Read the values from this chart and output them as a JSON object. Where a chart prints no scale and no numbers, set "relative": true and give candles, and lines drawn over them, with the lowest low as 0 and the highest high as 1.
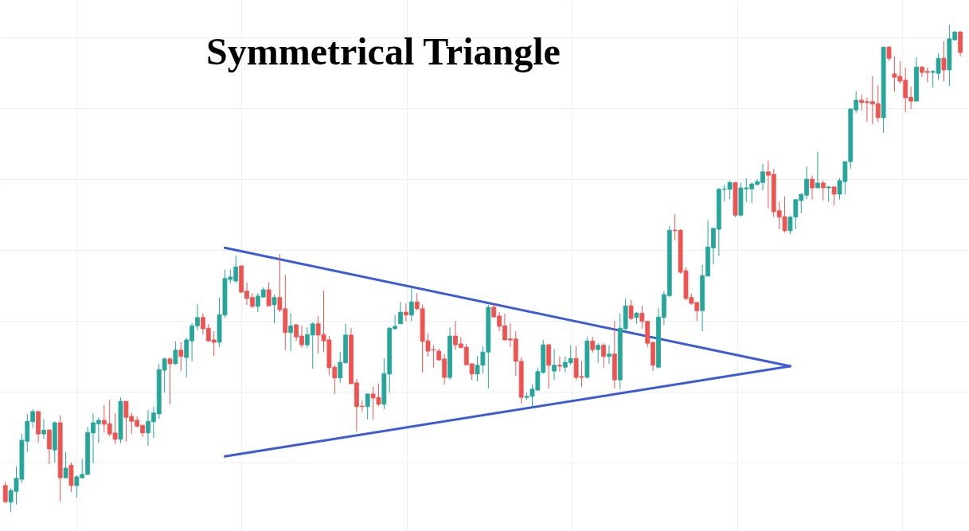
{
  "chart_data": {
    "type": "candlestick",
    "title": "Symmetrical Triangle",
    "relative": true,
    "grid": true,
    "categories": [
      null,
      null,
      null,
      null,
      null,
      null,
      null,
      null,
      null,
      null,
      null,
      null,
      null,
      null,
      null,
      null,
      null,
      null,
      null,
      null,
      null,
      null,
      null,
      null,
      null,
      null,
      null,
      null,
      null,
      null,
      null,
      null,
      null,
      null,
      null,
      null,
      null,
      null,
      null,
      null,
      null,
      null,
      null,
      null,
      null,
      null,
      null,
      null,
      null,
      null,
      null,
      null,
      null,
      null,
      null,
      null,
      null,
      null,
      null,
      null,
      null,
      null,
      null,
      null,
      null,
      null,
      null,
      null,
      null,
      null,
      null,
      null,
      null,
      null,
      null,
      null,
      null,
      null,
      null,
      null,
      null,
      null,
      null,
      null,
      null,
      null,
      null,
      null,
      null,
      null,
      null,
      null,
      null,
      null,
      null,
      null,
      null,
      null,
      null,
      null,
      null,
      null,
      null,
      null,
      null,
      null,
      null,
      null,
      null,
      null,
      null,
      null,
      null,
      null,
      null,
      null,
      null,
      null,
      null,
      null,
      null,
      null,
      null,
      null,
      null,
      null,
      null,
      null,
      null,
      null,
      null,
      null,
      null,
      null,
      null,
      null,
      null,
      null,
      null,
      null,
      null,
      null,
      null,
      null,
      null,
      null,
      null,
      null,
      null,
      null,
      null,
      null,
      null,
      null,
      null,
      null,
      null,
      null,
      null,
      null,
      null,
      null,
      null,
      null,
      null,
      null,
      null,
      null,
      null,
      null,
      null,
      null,
      null,
      null,
      null
    ],
    "ohlc": [
      [
        0.054,
        0.062,
        0.018,
        0.021
      ],
      [
        0.02,
        0.049,
        0,
        0.044
      ],
      [
        0.042,
        0.093,
        0.015,
        0.069
      ],
      [
        0.067,
        0.16,
        0.059,
        0.147
      ],
      [
        0.145,
        0.201,
        0.123,
        0.186
      ],
      [
        0.185,
        0.211,
        0.173,
        0.206
      ],
      [
        0.206,
        0.208,
        0.142,
        0.16
      ],
      [
        0.16,
        0.19,
        0.15,
        0.168
      ],
      [
        0.168,
        0.17,
        0.098,
        0.129
      ],
      [
        0.127,
        0.186,
        0.101,
        0.183
      ],
      [
        0.183,
        0.198,
        0.021,
        0.07
      ],
      [
        0.07,
        0.123,
        0.069,
        0.09
      ],
      [
        0.096,
        0.101,
        0.041,
        0.054
      ],
      [
        0.054,
        0.075,
        0.029,
        0.072
      ],
      [
        0.07,
        0.109,
        0.069,
        0.077
      ],
      [
        0.077,
        0.175,
        0.075,
        0.163
      ],
      [
        0.162,
        0.203,
        0.1,
        0.183
      ],
      [
        0.181,
        0.194,
        0.141,
        0.188
      ],
      [
        0.188,
        0.219,
        0.163,
        0.18
      ],
      [
        0.181,
        0.23,
        0.155,
        0.16
      ],
      [
        0.162,
        0.203,
        0.139,
        0.149
      ],
      [
        0.149,
        0.235,
        0.141,
        0.227
      ],
      [
        0.227,
        0.227,
        0.144,
        0.194
      ],
      [
        0.196,
        0.204,
        0.16,
        0.186
      ],
      [
        0.188,
        0.196,
        0.173,
        0.176
      ],
      [
        0.178,
        0.178,
        0.154,
        0.162
      ],
      [
        0.162,
        0.209,
        0.136,
        0.186
      ],
      [
        0.185,
        0.216,
        0.152,
        0.203
      ],
      [
        0.201,
        0.304,
        0.191,
        0.292
      ],
      [
        0.291,
        0.317,
        0.245,
        0.314
      ],
      [
        0.314,
        0.317,
        0.221,
        0.304
      ],
      [
        0.304,
        0.35,
        0.302,
        0.332
      ],
      [
        0.332,
        0.348,
        0.289,
        0.319
      ],
      [
        0.317,
        0.358,
        0.276,
        0.353
      ],
      [
        0.351,
        0.387,
        0.309,
        0.382
      ],
      [
        0.382,
        0.426,
        0.373,
        0.399
      ],
      [
        0.399,
        0.408,
        0.364,
        0.376
      ],
      [
        0.377,
        0.386,
        0.35,
        0.351
      ],
      [
        0.353,
        0.371,
        0.32,
        0.348
      ],
      [
        0.348,
        0.44,
        0.338,
        0.405
      ],
      [
        0.404,
        0.497,
        0.399,
        0.479
      ],
      [
        0.477,
        0.498,
        0.469,
        0.482
      ],
      [
        0.474,
        0.526,
        0.469,
        0.503
      ],
      [
        0.505,
        0.505,
        0.449,
        0.451
      ],
      [
        0.453,
        0.471,
        0.425,
        0.438
      ],
      [
        0.44,
        0.449,
        0.418,
        0.422
      ],
      [
        0.422,
        0.449,
        0.41,
        0.443
      ],
      [
        0.441,
        0.461,
        0.44,
        0.456
      ],
      [
        0.456,
        0.471,
        0.422,
        0.423
      ],
      [
        0.425,
        0.446,
        0.387,
        0.44
      ],
      [
        0.44,
        0.529,
        0.41,
        0.415
      ],
      [
        0.417,
        0.487,
        0.332,
        0.368
      ],
      [
        0.368,
        0.408,
        0.33,
        0.382
      ],
      [
        0.384,
        0.386,
        0.351,
        0.359
      ],
      [
        0.361,
        0.382,
        0.337,
        0.343
      ],
      [
        0.343,
        0.379,
        0.337,
        0.364
      ],
      [
        0.363,
        0.389,
        0.294,
        0.386
      ],
      [
        0.386,
        0.402,
        0.325,
        0.363
      ],
      [
        0.364,
        0.454,
        0.328,
        0.351
      ],
      [
        0.353,
        0.361,
        0.281,
        0.296
      ],
      [
        0.297,
        0.301,
        0.242,
        0.275
      ],
      [
        0.275,
        0.328,
        0.265,
        0.307
      ],
      [
        0.306,
        0.386,
        0.304,
        0.363
      ],
      [
        0.363,
        0.377,
        0.263,
        0.263
      ],
      [
        0.265,
        0.273,
        0.165,
        0.216
      ],
      [
        0.217,
        0.229,
        0.206,
        0.216
      ],
      [
        0.216,
        0.243,
        0.19,
        0.242
      ],
      [
        0.242,
        0.257,
        0.19,
        0.234
      ],
      [
        0.235,
        0.263,
        0.217,
        0.221
      ],
      [
        0.221,
        0.315,
        0.211,
        0.284
      ],
      [
        0.283,
        0.379,
        0.245,
        0.377
      ],
      [
        0.376,
        0.404,
        0.374,
        0.381
      ],
      [
        0.386,
        0.431,
        0.386,
        0.41
      ],
      [
        0.41,
        0.428,
        0.392,
        0.404
      ],
      [
        0.404,
        0.459,
        0.392,
        0.431
      ],
      [
        0.431,
        0.449,
        0.413,
        0.417
      ],
      [
        0.417,
        0.425,
        0.286,
        0.35
      ],
      [
        0.351,
        0.366,
        0.319,
        0.33
      ],
      [
        0.333,
        0.342,
        0.296,
        0.332
      ],
      [
        0.33,
        0.335,
        0.31,
        0.312
      ],
      [
        0.314,
        0.324,
        0.261,
        0.276
      ],
      [
        0.276,
        0.379,
        0.271,
        0.361
      ],
      [
        0.361,
        0.392,
        0.333,
        0.343
      ],
      [
        0.345,
        0.359,
        0.337,
        0.337
      ],
      [
        0.338,
        0.345,
        0.301,
        0.302
      ],
      [
        0.304,
        0.304,
        0.271,
        0.283
      ],
      [
        0.283,
        0.32,
        0.268,
        0.301
      ],
      [
        0.301,
        0.34,
        0.284,
        0.328
      ],
      [
        0.328,
        0.425,
        0.253,
        0.42
      ],
      [
        0.42,
        0.428,
        0.4,
        0.4
      ],
      [
        0.402,
        0.41,
        0.371,
        0.381
      ],
      [
        0.382,
        0.407,
        0.351,
        0.353
      ],
      [
        0.355,
        0.387,
        0.338,
        0.353
      ],
      [
        0.355,
        0.371,
        0.279,
        0.309
      ],
      [
        0.309,
        0.317,
        0.222,
        0.235
      ],
      [
        0.235,
        0.245,
        0.23,
        0.237
      ],
      [
        0.237,
        0.261,
        0.214,
        0.252
      ],
      [
        0.25,
        0.296,
        0.248,
        0.288
      ],
      [
        0.286,
        0.353,
        0.284,
        0.343
      ],
      [
        0.343,
        0.345,
        0.253,
        0.301
      ],
      [
        0.289,
        0.335,
        0.271,
        0.301
      ],
      [
        0.301,
        0.319,
        0.288,
        0.299
      ],
      [
        0.297,
        0.319,
        0.286,
        0.307
      ],
      [
        0.306,
        0.342,
        0.301,
        0.315
      ],
      [
        0.315,
        0.34,
        0.271,
        0.276
      ],
      [
        0.278,
        0.309,
        0.257,
        0.276
      ],
      [
        0.276,
        0.359,
        0.275,
        0.351
      ],
      [
        0.351,
        0.359,
        0.327,
        0.333
      ],
      [
        0.333,
        0.346,
        0.306,
        0.342
      ],
      [
        0.342,
        0.346,
        0.296,
        0.319
      ],
      [
        0.319,
        0.342,
        0.304,
        0.324
      ],
      [
        0.324,
        0.392,
        0.253,
        0.271
      ],
      [
        0.271,
        0.408,
        0.252,
        0.377
      ],
      [
        0.376,
        0.438,
        0.373,
        0.423
      ],
      [
        0.423,
        0.435,
        0.394,
        0.397
      ],
      [
        0.399,
        0.41,
        0.386,
        0.408
      ],
      [
        0.408,
        0.423,
        0.376,
        0.391
      ],
      [
        0.391,
        0.392,
        0.338,
        0.346
      ],
      [
        0.348,
        0.348,
        0.289,
        0.301
      ],
      [
        0.297,
        0.418,
        0.294,
        0.4
      ],
      [
        0.399,
        0.453,
        0.384,
        0.446
      ],
      [
        0.444,
        0.587,
        0.441,
        0.578
      ],
      [
        0.578,
        0.611,
        0.557,
        0.577
      ],
      [
        0.578,
        0.58,
        0.489,
        0.492
      ],
      [
        0.495,
        0.502,
        0.435,
        0.438
      ],
      [
        0.44,
        0.448,
        0.425,
        0.428
      ],
      [
        0.43,
        0.43,
        0.392,
        0.413
      ],
      [
        0.413,
        0.507,
        0.371,
        0.485
      ],
      [
        0.484,
        0.598,
        0.484,
        0.544
      ],
      [
        0.542,
        0.583,
        0.508,
        0.582
      ],
      [
        0.58,
        0.665,
        0.525,
        0.662
      ],
      [
        0.662,
        0.672,
        0.637,
        0.663
      ],
      [
        0.662,
        0.68,
        0.642,
        0.676
      ],
      [
        0.676,
        0.676,
        0.605,
        0.609
      ],
      [
        0.609,
        0.676,
        0.606,
        0.665
      ],
      [
        0.663,
        0.685,
        0.636,
        0.665
      ],
      [
        0.663,
        0.676,
        0.634,
        0.673
      ],
      [
        0.672,
        0.683,
        0.67,
        0.678
      ],
      [
        0.676,
        0.714,
        0.66,
        0.698
      ],
      [
        0.698,
        0.721,
        0.623,
        0.691
      ],
      [
        0.693,
        0.704,
        0.605,
        0.616
      ],
      [
        0.618,
        0.636,
        0.58,
        0.605
      ],
      [
        0.606,
        0.647,
        0.574,
        0.577
      ],
      [
        0.577,
        0.608,
        0.57,
        0.605
      ],
      [
        0.605,
        0.641,
        0.58,
        0.641
      ],
      [
        0.639,
        0.654,
        0.613,
        0.652
      ],
      [
        0.65,
        0.709,
        0.642,
        0.683
      ],
      [
        0.683,
        0.69,
        0.641,
        0.665
      ],
      [
        0.665,
        0.739,
        0.665,
        0.675
      ],
      [
        0.675,
        0.68,
        0.639,
        0.665
      ],
      [
        0.665,
        0.668,
        0.636,
        0.667
      ],
      [
        0.667,
        0.667,
        0.629,
        0.652
      ],
      [
        0.652,
        0.685,
        0.641,
        0.68
      ],
      [
        0.678,
        0.719,
        0.652,
        0.719
      ],
      [
        0.719,
        0.828,
        0.704,
        0.827
      ],
      [
        0.825,
        0.863,
        0.819,
        0.845
      ],
      [
        0.845,
        0.856,
        0.824,
        0.84
      ],
      [
        0.842,
        0.85,
        0.801,
        0.84
      ],
      [
        0.842,
        0.895,
        0.796,
        0.837
      ],
      [
        0.838,
        0.876,
        0.801,
        0.809
      ],
      [
        0.809,
        0.954,
        0.778,
        0.954
      ],
      [
        0.954,
        0.956,
        0.926,
        0.931
      ],
      [
        0.899,
        0.935,
        0.863,
        0.892
      ],
      [
        0.894,
        0.925,
        0.879,
        0.884
      ],
      [
        0.886,
        0.912,
        0.82,
        0.85
      ],
      [
        0.851,
        0.873,
        0.827,
        0.843
      ],
      [
        0.843,
        0.933,
        0.843,
        0.913
      ],
      [
        0.913,
        0.915,
        0.892,
        0.902
      ],
      [
        0.904,
        0.912,
        0.882,
        0.902
      ],
      [
        0.902,
        0.907,
        0.871,
        0.904
      ],
      [
        0.9,
        0.941,
        0.887,
        0.931
      ],
      [
        0.931,
        0.966,
        0.884,
        0.907
      ],
      [
        0.907,
        1,
        0.874,
        0.971
      ],
      [
        0.969,
        0.987,
        0.967,
        0.985
      ],
      [
        0.985,
        0.987,
        0.935,
        0.943
      ]
    ],
    "colors": [
      "#ef5350",
      "#26a69a",
      "#26a69a",
      "#26a69a",
      "#26a69a",
      "#26a69a",
      "#ef5350",
      "#26a69a",
      "#ef5350",
      "#26a69a",
      "#ef5350",
      "#26a69a",
      "#ef5350",
      "#26a69a",
      "#26a69a",
      "#26a69a",
      "#26a69a",
      "#26a69a",
      "#ef5350",
      "#ef5350",
      "#ef5350",
      "#26a69a",
      "#ef5350",
      "#ef5350",
      "#ef5350",
      "#ef5350",
      "#26a69a",
      "#26a69a",
      "#26a69a",
      "#26a69a",
      "#ef5350",
      "#26a69a",
      "#ef5350",
      "#26a69a",
      "#26a69a",
      "#26a69a",
      "#ef5350",
      "#ef5350",
      "#ef5350",
      "#26a69a",
      "#26a69a",
      "#26a69a",
      "#26a69a",
      "#ef5350",
      "#ef5350",
      "#ef5350",
      "#26a69a",
      "#26a69a",
      "#ef5350",
      "#26a69a",
      "#ef5350",
      "#ef5350",
      "#26a69a",
      "#ef5350",
      "#ef5350",
      "#26a69a",
      "#26a69a",
      "#ef5350",
      "#ef5350",
      "#ef5350",
      "#ef5350",
      "#26a69a",
      "#26a69a",
      "#ef5350",
      "#ef5350",
      "#ef5350",
      "#26a69a",
      "#ef5350",
      "#ef5350",
      "#26a69a",
      "#26a69a",
      "#26a69a",
      "#26a69a",
      "#ef5350",
      "#26a69a",
      "#ef5350",
      "#ef5350",
      "#ef5350",
      "#ef5350",
      "#ef5350",
      "#ef5350",
      "#26a69a",
      "#ef5350",
      "#ef5350",
      "#ef5350",
      "#ef5350",
      "#26a69a",
      "#26a69a",
      "#26a69a",
      "#ef5350",
      "#ef5350",
      "#ef5350",
      "#ef5350",
      "#ef5350",
      "#ef5350",
      "#26a69a",
      "#26a69a",
      "#26a69a",
      "#26a69a",
      "#ef5350",
      "#26a69a",
      "#ef5350",
      "#26a69a",
      "#26a69a",
      "#ef5350",
      "#ef5350",
      "#26a69a",
      "#ef5350",
      "#26a69a",
      "#ef5350",
      "#26a69a",
      "#ef5350",
      "#26a69a",
      "#26a69a",
      "#ef5350",
      "#26a69a",
      "#ef5350",
      "#ef5350",
      "#ef5350",
      "#26a69a",
      "#26a69a",
      "#26a69a",
      "#ef5350",
      "#ef5350",
      "#ef5350",
      "#ef5350",
      "#ef5350",
      "#26a69a",
      "#26a69a",
      "#26a69a",
      "#26a69a",
      "#26a69a",
      "#26a69a",
      "#ef5350",
      "#26a69a",
      "#26a69a",
      "#26a69a",
      "#26a69a",
      "#26a69a",
      "#ef5350",
      "#ef5350",
      "#ef5350",
      "#ef5350",
      "#26a69a",
      "#26a69a",
      "#26a69a",
      "#26a69a",
      "#ef5350",
      "#26a69a",
      "#ef5350",
      "#26a69a",
      "#ef5350",
      "#26a69a",
      "#26a69a",
      "#26a69a",
      "#26a69a",
      "#ef5350",
      "#ef5350",
      "#ef5350",
      "#ef5350",
      "#26a69a",
      "#ef5350",
      "#ef5350",
      "#ef5350",
      "#ef5350",
      "#ef5350",
      "#26a69a",
      "#ef5350",
      "#ef5350",
      "#26a69a",
      "#26a69a",
      "#ef5350",
      "#26a69a",
      "#26a69a",
      "#ef5350"
    ],
    "series": [
      {
        "type": "line",
        "color": "#3b5bdb",
        "values": [
          null,
          null,
          null,
          null,
          null,
          null,
          null,
          null,
          null,
          null,
          null,
          null,
          null,
          null,
          null,
          null,
          null,
          null,
          null,
          null,
          null,
          null,
          null,
          null,
          null,
          null,
          null,
          null,
          null,
          null,
          null,
          null,
          null,
          null,
          null,
          null,
          null,
          null,
          null,
          null,
          0.542,
          null,
          null,
          null,
          null,
          null,
          null,
          null,
          null,
          null,
          null,
          null,
          null,
          null,
          null,
          null,
          null,
          null,
          null,
          null,
          null,
          null,
          null,
          null,
          null,
          null,
          null,
          null,
          null,
          null,
          null,
          null,
          null,
          null,
          null,
          null,
          null,
          null,
          null,
          null,
          null,
          null,
          null,
          null,
          null,
          null,
          null,
          null,
          null,
          null,
          null,
          null,
          null,
          null,
          null,
          null,
          null,
          null,
          null,
          null,
          null,
          null,
          null,
          null,
          null,
          null,
          null,
          null,
          null,
          null,
          null,
          null,
          null,
          null,
          null,
          null,
          null,
          null,
          null,
          null,
          null,
          null,
          null,
          null,
          null,
          null,
          null,
          null,
          null,
          null,
          null,
          null,
          null,
          null,
          null,
          null,
          null,
          null,
          null,
          null,
          null,
          null,
          null,
          0.299,
          null,
          null,
          null,
          null,
          null,
          null,
          null,
          null,
          null,
          null,
          null,
          null,
          null,
          null,
          null,
          null,
          null,
          null,
          null,
          null,
          null,
          null,
          null,
          null,
          null,
          null,
          null,
          null,
          null,
          null,
          null
        ]
      },
      {
        "type": "line",
        "color": "#3b5bdb",
        "values": [
          null,
          null,
          null,
          null,
          null,
          null,
          null,
          null,
          null,
          null,
          null,
          null,
          null,
          null,
          null,
          null,
          null,
          null,
          null,
          null,
          null,
          null,
          null,
          null,
          null,
          null,
          null,
          null,
          null,
          null,
          null,
          null,
          null,
          null,
          null,
          null,
          null,
          null,
          null,
          null,
          0.114,
          null,
          null,
          null,
          null,
          null,
          null,
          null,
          null,
          null,
          null,
          null,
          null,
          null,
          null,
          null,
          null,
          null,
          null,
          null,
          null,
          null,
          null,
          null,
          null,
          null,
          null,
          null,
          null,
          null,
          null,
          null,
          null,
          null,
          null,
          null,
          null,
          null,
          null,
          null,
          null,
          null,
          null,
          null,
          null,
          null,
          null,
          null,
          null,
          null,
          null,
          null,
          null,
          null,
          null,
          null,
          null,
          null,
          null,
          null,
          null,
          null,
          null,
          null,
          null,
          null,
          null,
          null,
          null,
          null,
          null,
          null,
          null,
          null,
          null,
          null,
          null,
          null,
          null,
          null,
          null,
          null,
          null,
          null,
          null,
          null,
          null,
          null,
          null,
          null,
          null,
          null,
          null,
          null,
          null,
          null,
          null,
          null,
          null,
          null,
          null,
          null,
          null,
          0.299,
          null,
          null,
          null,
          null,
          null,
          null,
          null,
          null,
          null,
          null,
          null,
          null,
          null,
          null,
          null,
          null,
          null,
          null,
          null,
          null,
          null,
          null,
          null,
          null,
          null,
          null,
          null,
          null,
          null,
          null,
          null
        ]
      }
    ]
  }
}
